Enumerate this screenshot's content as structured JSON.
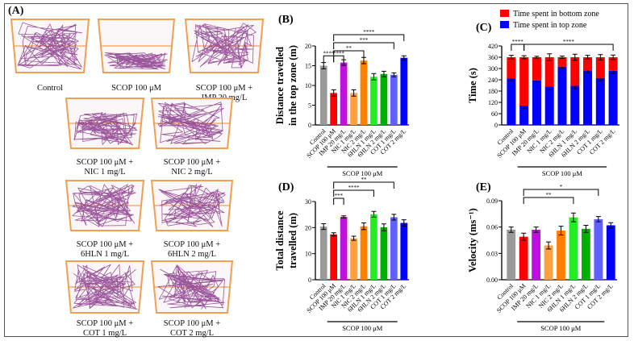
{
  "panel_a": {
    "label": "(A)",
    "images": [
      {
        "caption": [
          "Control"
        ],
        "group": "control"
      },
      {
        "caption": [
          "SCOP 100 μM"
        ],
        "group": "scop"
      },
      {
        "caption": [
          "SCOP 100 μM +",
          "IMP 20 mg/L"
        ],
        "group": "imp"
      },
      {
        "caption": [
          "SCOP 100 μM +",
          "NIC 1 mg/L"
        ],
        "group": "nic1"
      },
      {
        "caption": [
          "SCOP 100 μM +",
          "NIC 2 mg/L"
        ],
        "group": "nic2"
      },
      {
        "caption": [
          "SCOP 100 μM +",
          "6HLN 1 mg/L"
        ],
        "group": "hln1"
      },
      {
        "caption": [
          "SCOP 100 μM +",
          "6HLN 2 mg/L"
        ],
        "group": "hln2"
      },
      {
        "caption": [
          "SCOP 100 μM +",
          "COT 1 mg/L"
        ],
        "group": "cot1"
      },
      {
        "caption": [
          "SCOP 100 μM +",
          "COT 2 mg/L"
        ],
        "group": "cot2"
      }
    ],
    "track_color": "#8a3a8c",
    "tank_color": "#f0a050"
  },
  "chart_data": [
    {
      "id": "B",
      "label": "(B)",
      "type": "bar",
      "ylabel": [
        "Distance travelled",
        "in the top zone (m)"
      ],
      "categories": [
        "Control",
        "SCOP 100 μM",
        "IMP 20 mg/L",
        "NIC 1 mg/L",
        "NIC 2 mg/L",
        "6HLN 1 mg/L",
        "6HLN 2 mg/L",
        "COT 1 mg/L",
        "COT 2 mg/L"
      ],
      "values": [
        15.0,
        8.1,
        15.8,
        8.1,
        16.3,
        12.2,
        12.9,
        12.7,
        17.0
      ],
      "errors": [
        0.8,
        0.8,
        0.7,
        0.8,
        0.8,
        0.8,
        0.7,
        0.5,
        0.5
      ],
      "ylim": [
        0,
        20
      ],
      "yticks": [
        0,
        5,
        10,
        15,
        20
      ],
      "group_label": "SCOP 100 μM",
      "brackets": [
        {
          "from": 0,
          "to": 1,
          "label": "****",
          "level": 0
        },
        {
          "from": 1,
          "to": 2,
          "label": "****",
          "level": 0
        },
        {
          "from": 1,
          "to": 4,
          "label": "**",
          "level": 1
        },
        {
          "from": 1,
          "to": 7,
          "label": "***",
          "level": 2
        },
        {
          "from": 1,
          "to": 8,
          "label": "****",
          "level": 3
        }
      ]
    },
    {
      "id": "C",
      "label": "(C)",
      "type": "bar-stacked",
      "ylabel": [
        "Time (s)"
      ],
      "categories": [
        "Control",
        "SCOP 100 μM",
        "IMP 20 mg/L",
        "NIC 1 mg/L",
        "NIC 2 mg/L",
        "6HLN 1 mg/L",
        "6HLN 2 mg/L",
        "COT 1 mg/L",
        "COT 2 mg/L"
      ],
      "series": [
        {
          "name": "Time spent in top zone",
          "color": "#0000ff",
          "values": [
            248,
            103,
            237,
            205,
            310,
            208,
            290,
            250,
            288
          ],
          "errors": [
            12,
            14,
            6,
            18,
            8,
            15,
            12,
            14,
            14
          ]
        },
        {
          "name": "Time spent in bottom zone",
          "color": "#ff0000",
          "values": [
            112,
            257,
            123,
            155,
            50,
            152,
            70,
            110,
            72
          ],
          "errors": [
            10,
            8,
            5,
            18,
            6,
            16,
            10,
            14,
            12
          ]
        }
      ],
      "ylim": [
        0,
        420
      ],
      "yticks": [
        0,
        60,
        120,
        180,
        240,
        300,
        360,
        420
      ],
      "legend": "top",
      "group_label": "SCOP 100 μM",
      "brackets": [
        {
          "from": 0,
          "to": 1,
          "label": "****",
          "level": 0
        },
        {
          "from": 1,
          "to": 8,
          "label": "****",
          "level": 0
        }
      ]
    },
    {
      "id": "D",
      "label": "(D)",
      "type": "bar",
      "ylabel": [
        "Total distance",
        "travelled (m)"
      ],
      "categories": [
        "Control",
        "SCOP 100 μM",
        "IMP 20 mg/L",
        "NIC 1 mg/L",
        "NIC 2 mg/L",
        "6HLN 1 mg/L",
        "6HLN 2 mg/L",
        "COT 1 mg/L",
        "COT 2 mg/L"
      ],
      "values": [
        20.4,
        17.4,
        24.1,
        15.9,
        20.5,
        25.1,
        20.1,
        24.0,
        21.8
      ],
      "errors": [
        1.1,
        0.6,
        0.4,
        0.8,
        1.3,
        1.1,
        1.3,
        1.1,
        1.2
      ],
      "ylim": [
        0,
        30
      ],
      "yticks": [
        0,
        10,
        20,
        30
      ],
      "group_label": "SCOP 100 μM",
      "brackets": [
        {
          "from": 1,
          "to": 2,
          "label": "***",
          "level": 0
        },
        {
          "from": 1,
          "to": 5,
          "label": "****",
          "level": 1
        },
        {
          "from": 1,
          "to": 7,
          "label": "**",
          "level": 2
        }
      ]
    },
    {
      "id": "E",
      "label": "(E)",
      "type": "bar",
      "ylabel": [
        "Velocity (ms⁻¹)"
      ],
      "categories": [
        "Control",
        "SCOP 100 μM",
        "IMP 20 mg/L",
        "NIC 1 mg/L",
        "NIC 2 mg/L",
        "6HLN 1 mg/L",
        "6HLN 2 mg/L",
        "COT 1 mg/L",
        "COT 2 mg/L"
      ],
      "values": [
        0.057,
        0.049,
        0.057,
        0.039,
        0.056,
        0.071,
        0.058,
        0.069,
        0.062
      ],
      "errors": [
        0.003,
        0.004,
        0.003,
        0.004,
        0.005,
        0.005,
        0.004,
        0.003,
        0.003
      ],
      "ylim": [
        0,
        0.09
      ],
      "yticks": [
        "0.00",
        "0.03",
        "0.06",
        "0.09"
      ],
      "group_label": "SCOP 100 μM",
      "brackets": [
        {
          "from": 1,
          "to": 5,
          "label": "**",
          "level": 0
        },
        {
          "from": 1,
          "to": 7,
          "label": "*",
          "level": 1
        }
      ]
    }
  ],
  "bar_colors": [
    "#9a9a9a",
    "#ff0000",
    "#c010e0",
    "#ffa040",
    "#ff8000",
    "#22ee22",
    "#00b000",
    "#6060ff",
    "#0000ff"
  ]
}
